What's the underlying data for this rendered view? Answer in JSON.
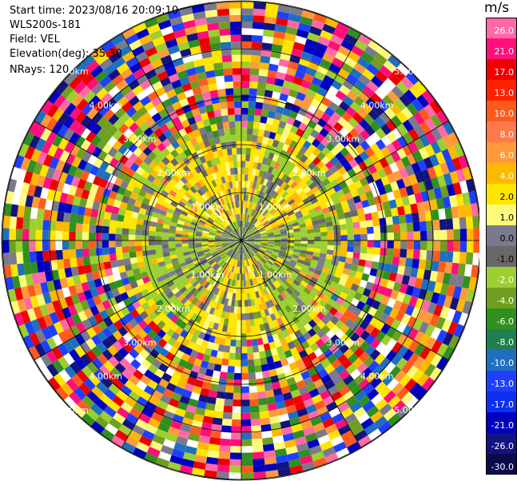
{
  "info": {
    "start_time": "Start time: 2023/08/16 20:09:10",
    "instrument": "WLS200s-181",
    "field": "Field: VEL",
    "elevation": "Elevation(deg): 35.30",
    "nrays": "NRays: 120"
  },
  "chart_data": {
    "type": "heatmap",
    "projection": "polar-ppi",
    "field": "VEL",
    "units": "m/s",
    "grid": true,
    "range_rings_km": [
      "1.00km",
      "2.00km",
      "3.00km",
      "4.00km",
      "5.00km"
    ],
    "colorbar": {
      "unit_label": "m/s",
      "ticks": [
        "26.0",
        "21.0",
        "17.0",
        "13.0",
        "10.0",
        "8.0",
        "6.0",
        "4.0",
        "2.0",
        "1.0",
        "0.0",
        "-1.0",
        "-2.0",
        "-4.0",
        "-6.0",
        "-8.0",
        "-10.0",
        "-13.0",
        "-17.0",
        "-21.0",
        "-26.0",
        "-30.0"
      ],
      "colors": [
        "#ff6aa6",
        "#ff0f7a",
        "#ee0000",
        "#ff2200",
        "#ff5a1e",
        "#ff7a4a",
        "#ff9a3a",
        "#ffb800",
        "#ffe500",
        "#fffb7a",
        "#7a7a8c",
        "#686868",
        "#9ccf2f",
        "#6f9f1f",
        "#2f8f1f",
        "#1f7f4f",
        "#1f6fbf",
        "#1f3fff",
        "#0f2fef",
        "#0000bf",
        "#13137f",
        "#0b0b4a"
      ]
    }
  }
}
